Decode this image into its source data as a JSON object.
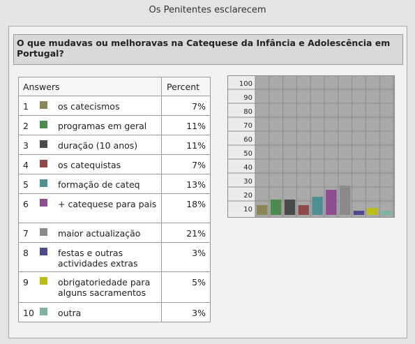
{
  "page_title": "Os Penitentes esclarecem",
  "question": "O que mudavas ou melhoravas na Catequese da Infância e Adolescência em Portugal?",
  "table": {
    "answers_header": "Answers",
    "percent_header": "Percent"
  },
  "rows": [
    {
      "num": "1",
      "label": "os catecismos",
      "pct": "7%",
      "color": "#8b8658"
    },
    {
      "num": "2",
      "label": "programas em geral",
      "pct": "11%",
      "color": "#4d8a4d"
    },
    {
      "num": "3",
      "label": "duração (10 anos)",
      "pct": "11%",
      "color": "#4a4a4a"
    },
    {
      "num": "4",
      "label": "os catequistas",
      "pct": "7%",
      "color": "#8f4a4a"
    },
    {
      "num": "5",
      "label": "formação de cateq",
      "pct": "13%",
      "color": "#4e8f93"
    },
    {
      "num": "6",
      "label": "+ catequese para pais",
      "pct": "18%",
      "color": "#8e4d8e"
    },
    {
      "num": "7",
      "label": "maior actualização",
      "pct": "21%",
      "color": "#8a8a8a"
    },
    {
      "num": "8",
      "label": "festas e outras actividades extras",
      "pct": "3%",
      "color": "#4a4a8c"
    },
    {
      "num": "9",
      "label": "obrigatoriedade para alguns sacramentos",
      "pct": "5%",
      "color": "#bdbd1a"
    },
    {
      "num": "10",
      "label": "outra",
      "pct": "3%",
      "color": "#7fb3a8"
    }
  ],
  "chart_data": {
    "type": "bar",
    "categories": [
      "1",
      "2",
      "3",
      "4",
      "5",
      "6",
      "7",
      "8",
      "9",
      "10"
    ],
    "values": [
      7,
      11,
      11,
      7,
      13,
      18,
      21,
      3,
      5,
      3
    ],
    "colors": [
      "#8b8658",
      "#4d8a4d",
      "#4a4a4a",
      "#8f4a4a",
      "#4e8f93",
      "#8e4d8e",
      "#8a8a8a",
      "#4a4a8c",
      "#bdbd1a",
      "#7fb3a8"
    ],
    "y_ticks": [
      "10",
      "20",
      "30",
      "40",
      "50",
      "60",
      "70",
      "80",
      "90",
      "100"
    ],
    "ylim": [
      0,
      100
    ],
    "grid": true
  }
}
